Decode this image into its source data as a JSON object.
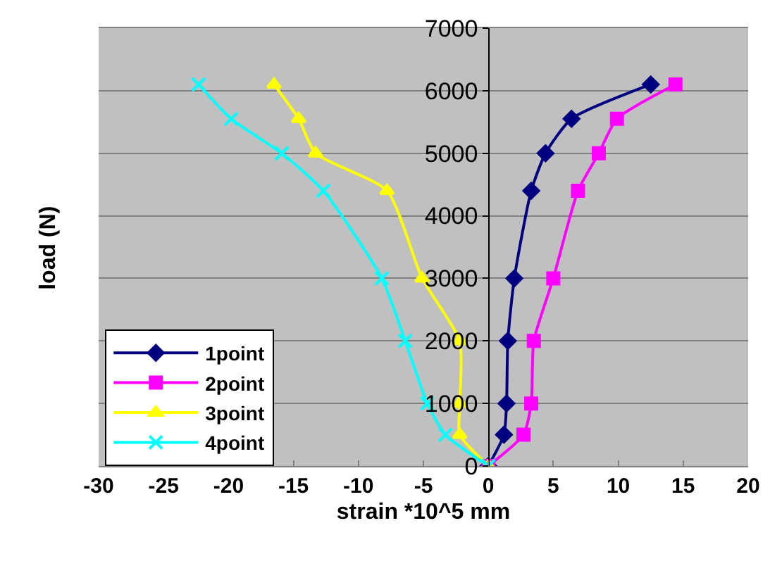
{
  "chart_data": {
    "type": "line",
    "xlabel": "strain *10^5 mm",
    "ylabel": "load (N)",
    "xlim": [
      -30,
      20
    ],
    "xticks": [
      -30,
      -25,
      -20,
      -15,
      -10,
      -5,
      0,
      5,
      10,
      15,
      20
    ],
    "ylim": [
      0,
      7000
    ],
    "yticks": [
      0,
      1000,
      2000,
      3000,
      4000,
      5000,
      6000,
      7000
    ],
    "grid": "y",
    "legend": "bottom left",
    "line_style": "solid",
    "series": [
      {
        "name": "1point",
        "color": "#000080",
        "marker": "diamond",
        "x": [
          0,
          1.2,
          1.4,
          1.5,
          2.0,
          3.3,
          4.4,
          6.4,
          12.5
        ],
        "values": [
          0,
          500,
          1000,
          2000,
          3000,
          4400,
          5000,
          5550,
          6100
        ]
      },
      {
        "name": "2point",
        "color": "#ff00ff",
        "marker": "square",
        "x": [
          0,
          2.7,
          3.3,
          3.5,
          5.0,
          6.9,
          8.5,
          9.9,
          14.4
        ],
        "values": [
          0,
          500,
          1000,
          2000,
          3000,
          4400,
          5000,
          5550,
          6100
        ]
      },
      {
        "name": "3point",
        "color": "#ffff00",
        "marker": "triangle",
        "x": [
          0,
          -2.2,
          -2.2,
          -2.2,
          -5.1,
          -7.8,
          -13.3,
          -14.6,
          -16.5
        ],
        "values": [
          0,
          500,
          1000,
          2000,
          3000,
          4400,
          5000,
          5550,
          6100
        ]
      },
      {
        "name": "4point",
        "color": "#00ffff",
        "marker": "cross",
        "x": [
          0,
          -3.3,
          -4.7,
          -6.4,
          -8.2,
          -12.7,
          -15.9,
          -19.8,
          -22.3
        ],
        "values": [
          0,
          500,
          1000,
          2000,
          3000,
          4400,
          5000,
          5550,
          6100
        ]
      }
    ]
  }
}
